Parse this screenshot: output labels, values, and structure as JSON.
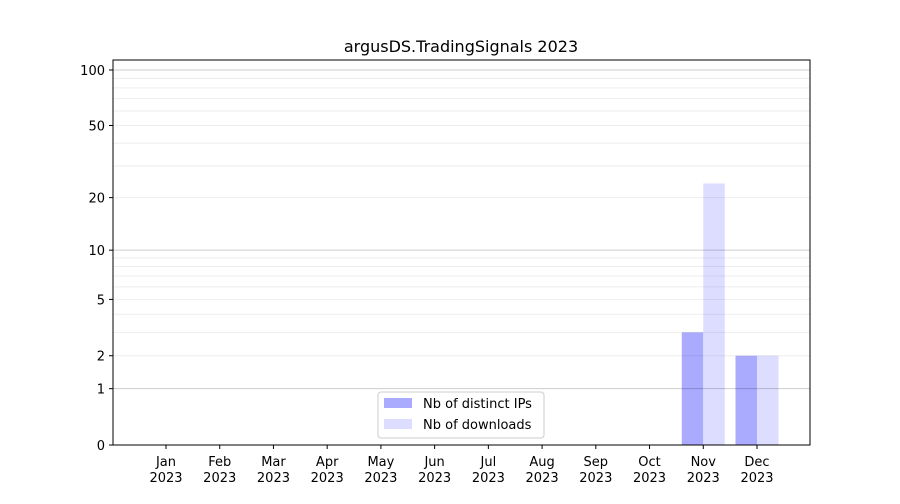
{
  "chart_data": {
    "type": "bar",
    "title": "argusDS.TradingSignals 2023",
    "xlabel": "",
    "ylabel": "",
    "yscale": "log(1+y)",
    "ylim": [
      0,
      110
    ],
    "yticks": [
      0,
      1,
      2,
      5,
      10,
      20,
      50,
      100
    ],
    "grid": true,
    "legend_position": "bottom-center",
    "categories": [
      "Jan\n2023",
      "Feb\n2023",
      "Mar\n2023",
      "Apr\n2023",
      "May\n2023",
      "Jun\n2023",
      "Jul\n2023",
      "Aug\n2023",
      "Sep\n2023",
      "Oct\n2023",
      "Nov\n2023",
      "Dec\n2023"
    ],
    "series": [
      {
        "name": "Nb of distinct IPs",
        "color": "#aaaaff",
        "values": [
          0,
          0,
          0,
          0,
          0,
          0,
          0,
          0,
          0,
          0,
          3,
          2
        ]
      },
      {
        "name": "Nb of downloads",
        "color": "#ddddff",
        "values": [
          0,
          0,
          0,
          0,
          0,
          0,
          0,
          0,
          0,
          0,
          24,
          2
        ]
      }
    ]
  }
}
